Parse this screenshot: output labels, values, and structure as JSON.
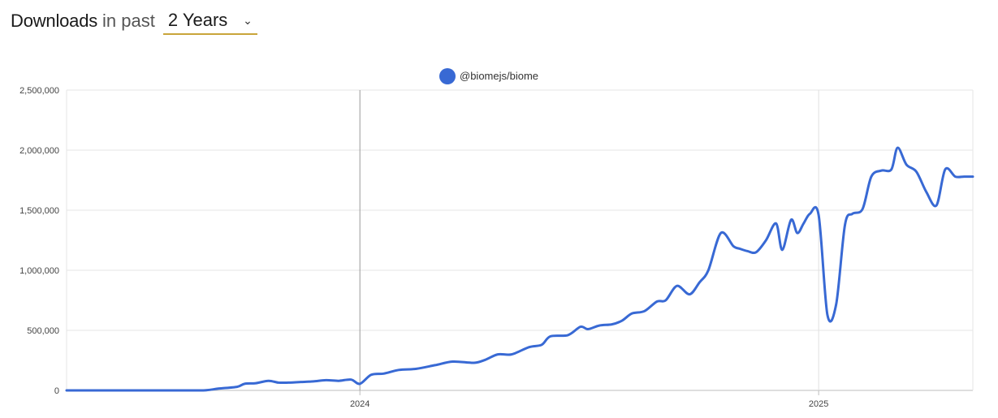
{
  "header": {
    "title_main": "Downloads",
    "title_rest": "in past",
    "period_selected": "2 Years",
    "chevron_icon": "chevron-down-icon"
  },
  "colors": {
    "series": "#3869d4",
    "grid": "#e6e6e6",
    "marker_line": "#9a9a9a",
    "select_underline": "#c9a53a"
  },
  "chart_data": {
    "type": "line",
    "legend_position": "top-center",
    "grid": true,
    "ylim": [
      0,
      2500000
    ],
    "yticks": [
      0,
      500000,
      1000000,
      1500000,
      2000000,
      2500000
    ],
    "ytick_labels": [
      "0",
      "500,000",
      "1,000,000",
      "1,500,000",
      "2,000,000",
      "2,500,000"
    ],
    "xlim": [
      "2023-05-12",
      "2025-05-04"
    ],
    "xticks": [
      {
        "date": "2024-01-01",
        "label": "2024"
      },
      {
        "date": "2025-01-01",
        "label": "2025"
      }
    ],
    "series": [
      {
        "name": "@biomejs/biome",
        "x": [
          "2023-05-12",
          "2023-06-01",
          "2023-07-01",
          "2023-08-01",
          "2023-08-29",
          "2023-09-10",
          "2023-09-25",
          "2023-10-01",
          "2023-10-10",
          "2023-10-20",
          "2023-10-28",
          "2023-11-05",
          "2023-11-15",
          "2023-11-25",
          "2023-12-05",
          "2023-12-15",
          "2023-12-25",
          "2024-01-01",
          "2024-01-10",
          "2024-01-20",
          "2024-02-01",
          "2024-02-15",
          "2024-03-01",
          "2024-03-15",
          "2024-04-01",
          "2024-04-10",
          "2024-04-20",
          "2024-05-01",
          "2024-05-15",
          "2024-05-25",
          "2024-06-01",
          "2024-06-15",
          "2024-06-25",
          "2024-07-01",
          "2024-07-10",
          "2024-07-20",
          "2024-07-28",
          "2024-08-05",
          "2024-08-15",
          "2024-08-25",
          "2024-09-01",
          "2024-09-10",
          "2024-09-20",
          "2024-09-28",
          "2024-10-05",
          "2024-10-15",
          "2024-10-25",
          "2024-10-30",
          "2024-11-05",
          "2024-11-12",
          "2024-11-20",
          "2024-11-28",
          "2024-12-03",
          "2024-12-10",
          "2024-12-15",
          "2024-12-20",
          "2024-12-25",
          "2025-01-01",
          "2025-01-08",
          "2025-01-15",
          "2025-01-22",
          "2025-01-28",
          "2025-02-05",
          "2025-02-12",
          "2025-02-20",
          "2025-02-28",
          "2025-03-05",
          "2025-03-12",
          "2025-03-20",
          "2025-03-28",
          "2025-04-05",
          "2025-04-12",
          "2025-04-20",
          "2025-04-27",
          "2025-05-04"
        ],
        "values": [
          0,
          0,
          0,
          0,
          0,
          15000,
          30000,
          55000,
          60000,
          80000,
          65000,
          65000,
          70000,
          75000,
          85000,
          80000,
          90000,
          55000,
          130000,
          140000,
          170000,
          180000,
          210000,
          240000,
          230000,
          255000,
          300000,
          300000,
          360000,
          380000,
          450000,
          460000,
          530000,
          510000,
          540000,
          550000,
          580000,
          640000,
          660000,
          740000,
          750000,
          870000,
          800000,
          900000,
          1000000,
          1310000,
          1200000,
          1180000,
          1160000,
          1150000,
          1250000,
          1390000,
          1170000,
          1420000,
          1310000,
          1390000,
          1470000,
          1460000,
          630000,
          720000,
          1380000,
          1470000,
          1510000,
          1780000,
          1830000,
          1840000,
          2020000,
          1880000,
          1820000,
          1650000,
          1540000,
          1840000,
          1780000,
          1780000,
          1780000
        ]
      }
    ]
  }
}
